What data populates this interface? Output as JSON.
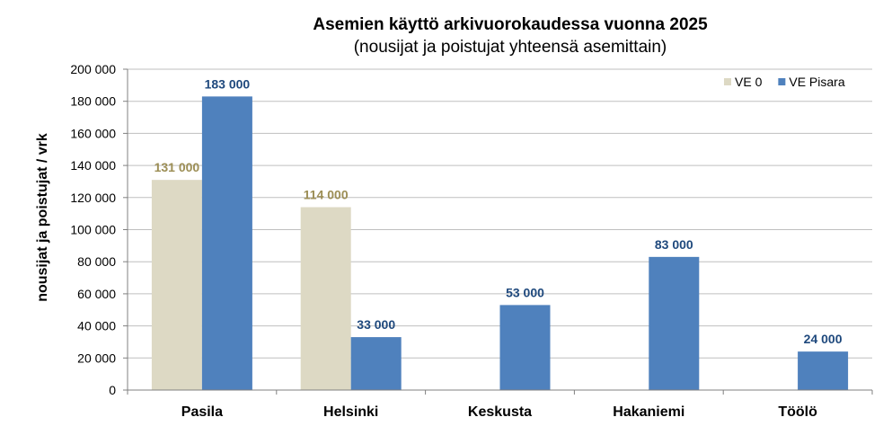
{
  "chart_data": {
    "type": "bar",
    "title": "Asemien käyttö arkivuorokaudessa vuonna 2025",
    "subtitle": "(nousijat ja poistujat yhteensä asemittain)",
    "ylabel": "nousijat ja poistujat / vrk",
    "xlabel": "",
    "categories": [
      "Pasila",
      "Helsinki",
      "Keskusta",
      "Hakaniemi",
      "Töölö"
    ],
    "ylim": [
      0,
      200000
    ],
    "yticks": [
      0,
      20000,
      40000,
      60000,
      80000,
      100000,
      120000,
      140000,
      160000,
      180000,
      200000
    ],
    "ytick_labels": [
      "0",
      "20 000",
      "40 000",
      "60 000",
      "80 000",
      "100 000",
      "120 000",
      "140 000",
      "160 000",
      "180 000",
      "200 000"
    ],
    "grid": true,
    "legend_position": "top-right",
    "series": [
      {
        "name": "VE 0",
        "color": "#ddd9c4",
        "label_color": "#9c8e55",
        "values": [
          131000,
          114000,
          null,
          null,
          null
        ],
        "labels": [
          "131 000",
          "114 000",
          "",
          "",
          ""
        ]
      },
      {
        "name": "VE Pisara",
        "color": "#4f81bd",
        "label_color": "#1f497d",
        "values": [
          183000,
          33000,
          53000,
          83000,
          24000
        ],
        "labels": [
          "183 000",
          "33 000",
          "53 000",
          "83 000",
          "24 000"
        ]
      }
    ]
  }
}
